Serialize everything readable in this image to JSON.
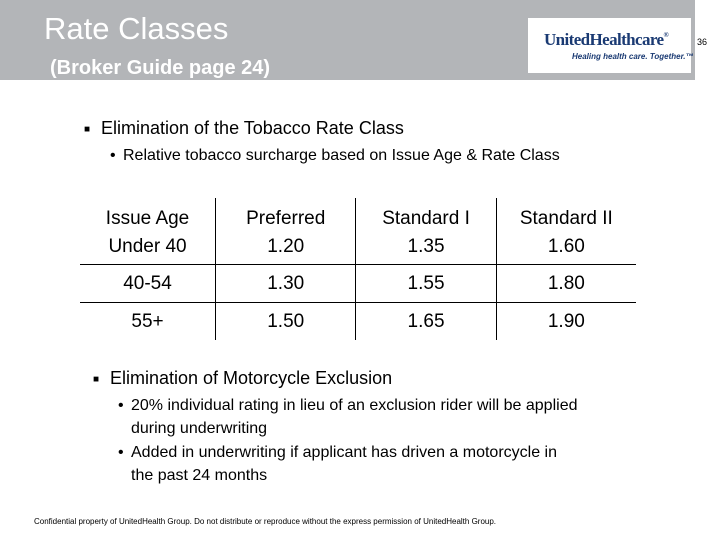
{
  "header": {
    "title": "Rate Classes",
    "subtitle": "(Broker Guide page 24)",
    "logo_name": "UnitedHealthcare",
    "logo_reg": "®",
    "logo_tagline": "Healing health care. Together.™",
    "page_number": "36"
  },
  "section1": {
    "bullet": "Elimination of the Tobacco Rate Class",
    "sub": "Relative tobacco surcharge based on Issue Age & Rate Class"
  },
  "table": {
    "headers": [
      "Issue Age",
      "Preferred",
      "Standard I",
      "Standard II"
    ],
    "rows": [
      [
        "Under 40",
        "1.20",
        "1.35",
        "1.60"
      ],
      [
        "40-54",
        "1.30",
        "1.55",
        "1.80"
      ],
      [
        "55+",
        "1.50",
        "1.65",
        "1.90"
      ]
    ]
  },
  "section2": {
    "bullet": "Elimination of Motorcycle Exclusion",
    "sub1_line1": "20% individual rating in lieu of an exclusion rider will be applied",
    "sub1_line2": "during underwriting",
    "sub2_line1": "Added in underwriting if applicant has driven a motorcycle in",
    "sub2_line2": "the past 24 months"
  },
  "footer": "Confidential property of UnitedHealth Group. Do not distribute or reproduce without the express permission of UnitedHealth Group."
}
